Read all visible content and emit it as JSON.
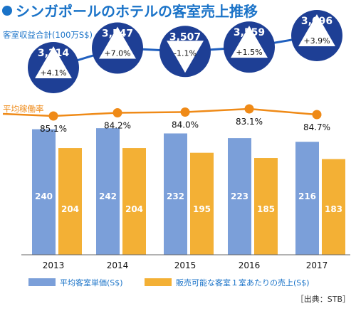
{
  "title": "シンガポールのホテルの客室売上推移",
  "colors": {
    "title_blue": "#1a73c8",
    "circle_navy": "#1e3f95",
    "line_blue": "#1f5fbf",
    "orange": "#ef8a17",
    "bar_blue": "#7b9fd9",
    "bar_orange": "#f3b035"
  },
  "chart_data": [
    {
      "type": "line",
      "ylabel": "客室収益合計(100万S$)",
      "categories": [
        "2013",
        "2014",
        "2015",
        "2016",
        "2017"
      ],
      "values": [
        3314,
        3547,
        3507,
        3559,
        3696
      ],
      "value_labels": [
        "3,314",
        "3,547",
        "3,507",
        "3,559",
        "3,696"
      ],
      "change_labels": [
        "+4.1%",
        "+7.0%",
        "-1.1%",
        "+1.5%",
        "+3.9%"
      ],
      "change_direction": [
        "up",
        "up",
        "down",
        "up",
        "up"
      ]
    },
    {
      "type": "line",
      "ylabel": "平均稼働率",
      "categories": [
        "2013",
        "2014",
        "2015",
        "2016",
        "2017"
      ],
      "values": [
        85.1,
        84.2,
        84.0,
        83.1,
        84.7
      ],
      "value_labels": [
        "85.1%",
        "84.2%",
        "84.0%",
        "83.1%",
        "84.7%"
      ]
    },
    {
      "type": "bar",
      "categories": [
        "2013",
        "2014",
        "2015",
        "2016",
        "2017"
      ],
      "series": [
        {
          "name": "平均客室単価(S$)",
          "values": [
            240,
            242,
            232,
            223,
            216
          ]
        },
        {
          "name": "販売可能な客室１室あたりの売上(S$)",
          "values": [
            204,
            204,
            195,
            185,
            183
          ]
        }
      ],
      "ylim": [
        0,
        250
      ]
    }
  ],
  "source": "［出典：STB］"
}
